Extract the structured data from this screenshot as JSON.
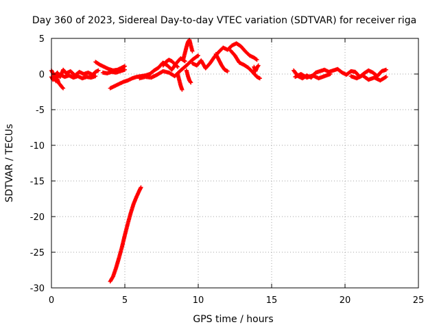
{
  "chart_data": {
    "type": "scatter",
    "title": "Day 360 of 2023, Sidereal Day-to-day VTEC variation (SDTVAR) for receiver riga",
    "xlabel": "GPS time / hours",
    "ylabel": "SDTVAR / TECUs",
    "xlim": [
      0,
      25
    ],
    "ylim": [
      -30,
      5
    ],
    "xticks": [
      0,
      5,
      10,
      15,
      20,
      25
    ],
    "yticks": [
      5,
      0,
      -5,
      -10,
      -15,
      -20,
      -25,
      -30
    ],
    "grid": true,
    "marker": "plus",
    "color": "#ff0000",
    "series": [
      {
        "name": "SDTVAR",
        "segments": [
          {
            "x": [
              0.0,
              0.2,
              0.4,
              0.6,
              0.8,
              1.0,
              1.3,
              1.6,
              1.9,
              2.2,
              2.5,
              2.8,
              3.0,
              3.2
            ],
            "y": [
              0.5,
              -0.3,
              0.2,
              -0.4,
              0.6,
              0.1,
              0.4,
              -0.2,
              0.3,
              0.0,
              0.2,
              -0.1,
              0.3,
              0.5
            ]
          },
          {
            "x": [
              0.0,
              0.1,
              0.2,
              0.3,
              0.4,
              0.5,
              0.6,
              0.7,
              0.8
            ],
            "y": [
              -0.4,
              -0.8,
              -0.5,
              -1.0,
              -0.7,
              -1.3,
              -1.5,
              -1.8,
              -2.0
            ]
          },
          {
            "x": [
              0.3,
              0.6,
              0.9,
              1.2,
              1.5,
              1.8,
              2.1,
              2.4,
              2.7,
              3.0
            ],
            "y": [
              -0.6,
              -0.1,
              -0.4,
              -0.2,
              -0.5,
              -0.3,
              -0.6,
              -0.4,
              -0.5,
              -0.3
            ]
          },
          {
            "x": [
              3.0,
              3.3,
              3.6,
              3.9,
              4.2,
              4.5,
              4.8,
              5.0
            ],
            "y": [
              1.7,
              1.3,
              1.0,
              0.7,
              0.5,
              0.6,
              0.9,
              1.1
            ]
          },
          {
            "x": [
              3.5,
              3.8,
              4.1,
              4.4,
              4.7,
              5.0
            ],
            "y": [
              0.2,
              0.1,
              0.3,
              0.2,
              0.4,
              0.6
            ]
          },
          {
            "x": [
              4.0,
              4.2,
              4.4,
              4.6,
              4.8,
              5.0,
              5.2,
              5.4,
              5.6,
              5.8,
              6.0,
              6.1
            ],
            "y": [
              -29.1,
              -28.4,
              -27.2,
              -25.8,
              -24.3,
              -22.6,
              -21.0,
              -19.5,
              -18.2,
              -17.2,
              -16.3,
              -15.9
            ]
          },
          {
            "x": [
              4.0,
              4.3,
              4.6,
              4.9,
              5.2,
              5.5,
              5.8,
              6.1,
              6.4,
              6.7,
              7.0,
              7.3,
              7.6,
              7.9,
              8.2,
              8.5,
              8.8,
              9.1
            ],
            "y": [
              -2.0,
              -1.7,
              -1.4,
              -1.1,
              -0.9,
              -0.6,
              -0.4,
              -0.3,
              -0.2,
              0.0,
              0.5,
              0.9,
              1.6,
              1.2,
              0.6,
              1.5,
              2.2,
              1.8
            ]
          },
          {
            "x": [
              6.0,
              6.4,
              6.8,
              7.2,
              7.6,
              8.0,
              8.4,
              8.8,
              9.2,
              9.6,
              10.0
            ],
            "y": [
              -0.6,
              -0.4,
              -0.5,
              -0.1,
              0.4,
              0.2,
              -0.3,
              0.5,
              1.2,
              2.0,
              2.6
            ]
          },
          {
            "x": [
              7.6,
              7.8,
              8.0,
              8.2,
              8.4,
              8.6
            ],
            "y": [
              1.2,
              1.7,
              2.0,
              1.8,
              1.4,
              1.0
            ]
          },
          {
            "x": [
              8.6,
              8.7,
              8.8,
              8.9
            ],
            "y": [
              0.0,
              -0.8,
              -1.6,
              -2.2
            ]
          },
          {
            "x": [
              9.0,
              9.1,
              9.2,
              9.3,
              9.4,
              9.5,
              9.6
            ],
            "y": [
              2.2,
              3.0,
              3.8,
              4.5,
              4.8,
              4.0,
              3.2
            ]
          },
          {
            "x": [
              9.2,
              9.3,
              9.4,
              9.5
            ],
            "y": [
              0.5,
              -0.3,
              -0.9,
              -1.2
            ]
          },
          {
            "x": [
              9.6,
              9.9,
              10.2,
              10.5,
              10.8,
              11.1,
              11.4,
              11.7,
              12.0,
              12.3,
              12.6,
              12.9,
              13.2,
              13.5,
              13.8,
              14.0
            ],
            "y": [
              1.5,
              1.2,
              1.9,
              0.8,
              1.5,
              2.4,
              3.1,
              3.7,
              3.4,
              4.0,
              4.3,
              3.9,
              3.2,
              2.6,
              2.3,
              2.0
            ]
          },
          {
            "x": [
              11.2,
              11.4,
              11.6,
              11.8,
              12.0
            ],
            "y": [
              2.8,
              2.0,
              1.2,
              0.6,
              0.4
            ]
          },
          {
            "x": [
              12.2,
              12.5,
              12.8,
              13.1,
              13.4,
              13.7,
              14.0,
              14.2
            ],
            "y": [
              3.3,
              2.6,
              1.6,
              1.3,
              0.9,
              0.3,
              -0.4,
              -0.6
            ]
          },
          {
            "x": [
              13.8,
              13.9,
              14.0,
              14.1
            ],
            "y": [
              1.0,
              0.4,
              0.9,
              1.2
            ]
          },
          {
            "x": [
              16.5,
              16.8,
              17.1,
              17.4,
              17.7,
              18.0,
              18.3,
              18.6,
              18.9,
              19.2,
              19.5,
              19.8,
              20.1,
              20.4,
              20.7,
              21.0,
              21.3,
              21.6,
              21.9,
              22.2,
              22.5,
              22.8
            ],
            "y": [
              0.5,
              -0.3,
              -0.6,
              -0.2,
              -0.5,
              0.2,
              0.4,
              0.6,
              0.3,
              0.5,
              0.7,
              0.2,
              -0.1,
              0.4,
              0.3,
              -0.4,
              0.1,
              0.5,
              0.2,
              -0.3,
              0.4,
              0.6
            ]
          },
          {
            "x": [
              16.6,
              17.0,
              17.4,
              17.8,
              18.2,
              18.6,
              19.0
            ],
            "y": [
              -0.4,
              0.0,
              -0.5,
              -0.2,
              -0.6,
              -0.3,
              0.0
            ]
          },
          {
            "x": [
              20.4,
              20.8,
              21.2,
              21.6,
              22.0,
              22.4,
              22.8
            ],
            "y": [
              -0.3,
              -0.6,
              -0.2,
              -0.8,
              -0.5,
              -0.9,
              -0.4
            ]
          }
        ]
      }
    ]
  }
}
